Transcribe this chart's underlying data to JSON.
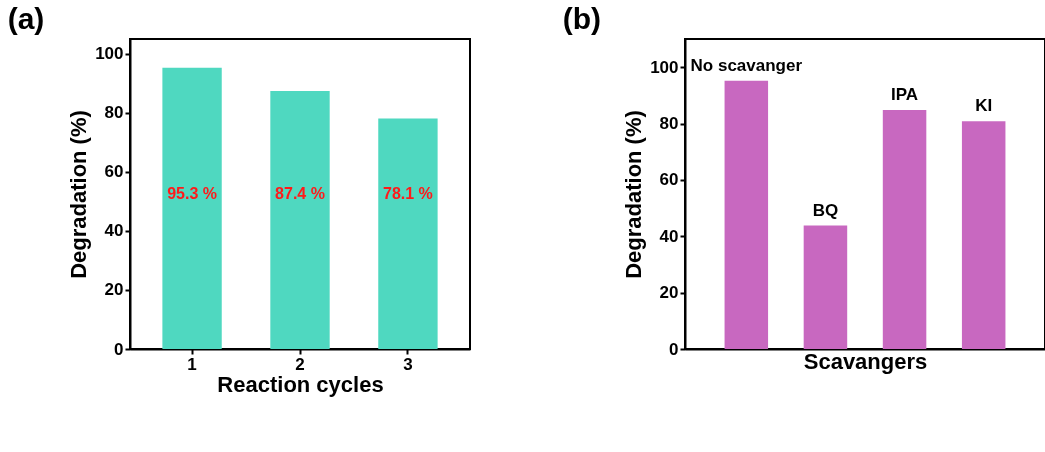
{
  "chart_data": [
    {
      "type": "bar",
      "title": "(a)",
      "xlabel": "Reaction cycles",
      "ylabel": "Degradation (%)",
      "categories": [
        "1",
        "2",
        "3"
      ],
      "values": [
        95.3,
        87.4,
        78.1
      ],
      "value_labels": [
        "95.3 %",
        "87.4 %",
        "78.1 %"
      ],
      "color": "#4fd8c0",
      "ylim": [
        0,
        105
      ],
      "yticks": [
        0,
        20,
        40,
        60,
        80,
        100
      ],
      "grid": false
    },
    {
      "type": "bar",
      "title": "(b)",
      "xlabel": "Scavangers",
      "ylabel": "Degradation (%)",
      "categories": [
        "No scavanger",
        "BQ",
        "IPA",
        "KI"
      ],
      "values": [
        95.2,
        43.8,
        84.8,
        80.8
      ],
      "color": "#c868c0",
      "ylim": [
        0,
        110
      ],
      "yticks": [
        0,
        20,
        40,
        60,
        80,
        100
      ],
      "grid": false,
      "tick_labels": "y"
    }
  ]
}
